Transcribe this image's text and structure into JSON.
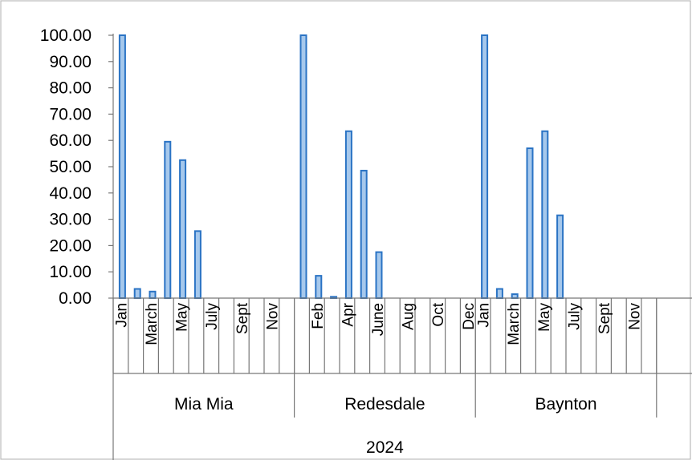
{
  "chart_data": {
    "type": "bar",
    "title": "",
    "xlabel": "",
    "ylabel": "",
    "ylim": [
      0,
      100
    ],
    "y_ticks": [
      "0.00",
      "10.00",
      "20.00",
      "30.00",
      "40.00",
      "50.00",
      "60.00",
      "70.00",
      "80.00",
      "90.00",
      "100.00"
    ],
    "grid": false,
    "legend": "none",
    "bar_color": "#a6c8ec",
    "bar_edge_color": "#2a73c4",
    "outer_category": "2024",
    "categories": [
      "Jan",
      "Feb",
      "March",
      "Apr",
      "May",
      "June",
      "July",
      "Aug",
      "Sept",
      "Oct",
      "Nov",
      "Dec"
    ],
    "groups": [
      {
        "name": "Mia Mia",
        "values": [
          100,
          3.5,
          2.5,
          59.5,
          52.5,
          25.5,
          0,
          0,
          0,
          0,
          0,
          0
        ],
        "visible_tick_labels": [
          "Jan",
          "March",
          "May",
          "July",
          "Sept",
          "Nov"
        ]
      },
      {
        "name": "Redesdale",
        "values": [
          100,
          8.5,
          0.5,
          63.5,
          48.5,
          17.5,
          0,
          0,
          0,
          0,
          0,
          0
        ],
        "visible_tick_labels": [
          "Feb",
          "Apr",
          "June",
          "Aug",
          "Oct",
          "Dec"
        ]
      },
      {
        "name": "Baynton",
        "values": [
          100,
          3.5,
          1.5,
          57,
          63.5,
          31.5,
          0,
          0,
          0,
          0,
          0,
          0
        ],
        "visible_tick_labels": [
          "Jan",
          "March",
          "May",
          "July",
          "Sept",
          "Nov"
        ]
      }
    ]
  }
}
